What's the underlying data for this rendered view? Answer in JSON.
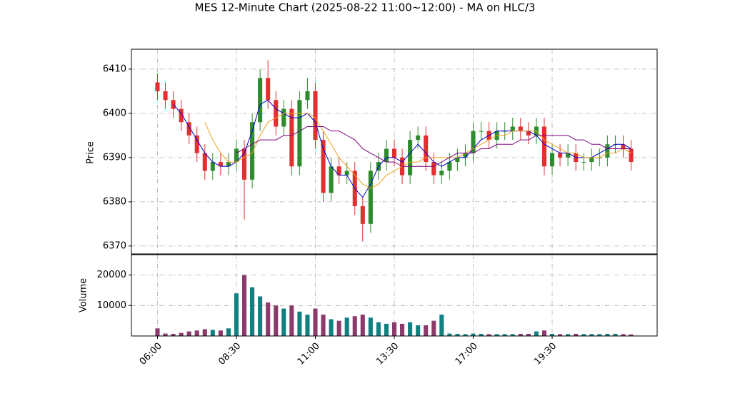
{
  "chart_data": {
    "type": "candlestick",
    "title": "MES 12-Minute Chart (2025-08-22 11:00~12:00) - MA on HLC/3",
    "ylabel": "Price",
    "ylim": [
      6368.2,
      6414.5
    ],
    "yticks": [
      6370,
      6380,
      6390,
      6400,
      6410
    ],
    "xlim": [
      -3.3,
      63.3
    ],
    "xticks": [
      {
        "value": 0,
        "label": "06:00"
      },
      {
        "value": 10,
        "label": "08:30"
      },
      {
        "value": 20,
        "label": "11:00"
      },
      {
        "value": 30,
        "label": "13:30"
      },
      {
        "value": 40,
        "label": "17:00"
      },
      {
        "value": 50,
        "label": "19:30"
      }
    ],
    "grid": true,
    "up_color": "#2e8b2e",
    "down_color": "#e03030",
    "open": [
      6407,
      6405,
      6403,
      6401,
      6398,
      6395,
      6391,
      6387,
      6389,
      6388,
      6389,
      6392,
      6385,
      6398,
      6408,
      6403,
      6397,
      6401,
      6388,
      6403,
      6405,
      6394,
      6382,
      6388,
      6386,
      6387,
      6379,
      6375,
      6387,
      6389,
      6392,
      6390,
      6386,
      6394,
      6395,
      6389,
      6386,
      6387,
      6389,
      6390,
      6391,
      6396,
      6396,
      6394,
      6396,
      6396,
      6397,
      6396,
      6395,
      6397,
      6388,
      6391,
      6390,
      6391,
      6389,
      6389,
      6390,
      6390,
      6393,
      6393,
      6392
    ],
    "high": [
      6409,
      6407,
      6405,
      6403,
      6400,
      6397,
      6393,
      6391,
      6391,
      6391,
      6394,
      6394,
      6400,
      6410,
      6412,
      6405,
      6403,
      6403,
      6405,
      6408,
      6407,
      6396,
      6390,
      6390,
      6389,
      6389,
      6381,
      6389,
      6391,
      6394,
      6394,
      6392,
      6396,
      6397,
      6397,
      6391,
      6389,
      6391,
      6392,
      6393,
      6398,
      6398,
      6398,
      6398,
      6398,
      6399,
      6399,
      6398,
      6399,
      6399,
      6393,
      6393,
      6393,
      6393,
      6391,
      6392,
      6392,
      6395,
      6395,
      6395,
      6394
    ],
    "low": [
      6403,
      6401,
      6399,
      6396,
      6393,
      6389,
      6385,
      6385,
      6386,
      6386,
      6387,
      6376,
      6383,
      6396,
      6401,
      6395,
      6395,
      6386,
      6386,
      6401,
      6392,
      6380,
      6380,
      6384,
      6384,
      6377,
      6371,
      6373,
      6385,
      6387,
      6388,
      6384,
      6384,
      6392,
      6387,
      6384,
      6384,
      6385,
      6387,
      6388,
      6389,
      6394,
      6392,
      6392,
      6394,
      6394,
      6394,
      6393,
      6393,
      6386,
      6386,
      6388,
      6388,
      6387,
      6387,
      6387,
      6388,
      6388,
      6391,
      6390,
      6387
    ],
    "close": [
      6405,
      6403,
      6401,
      6398,
      6395,
      6391,
      6387,
      6389,
      6388,
      6389,
      6392,
      6385,
      6398,
      6408,
      6403,
      6397,
      6401,
      6388,
      6403,
      6405,
      6394,
      6382,
      6388,
      6386,
      6387,
      6379,
      6375,
      6387,
      6389,
      6392,
      6390,
      6386,
      6394,
      6395,
      6389,
      6386,
      6387,
      6389,
      6390,
      6391,
      6396,
      6396,
      6394,
      6396,
      6396,
      6397,
      6396,
      6395,
      6397,
      6388,
      6391,
      6390,
      6391,
      6389,
      6389,
      6390,
      6390,
      6393,
      6393,
      6392,
      6389
    ],
    "series": [
      {
        "color": "#0000cc",
        "values": [
          null,
          null,
          6402,
          6400,
          6397,
          6394,
          6391,
          6389,
          6388,
          6388,
          6389,
          6391,
          6396,
          6402,
          6403,
          6401,
          6400,
          6399,
          6399,
          6400,
          6398,
          6392,
          6388,
          6386,
          6386,
          6383,
          6381,
          6384,
          6388,
          6390,
          6390,
          6389,
          6391,
          6393,
          6391,
          6389,
          6388,
          6389,
          6390,
          6390,
          6392,
          6394,
          6395,
          6396,
          6396,
          6396,
          6396,
          6396,
          6395,
          6393,
          6392,
          6391,
          6391,
          6390,
          6390,
          6390,
          6391,
          6392,
          6393,
          6393,
          6392
        ]
      },
      {
        "color": "#f0a020",
        "values": [
          null,
          null,
          null,
          null,
          null,
          null,
          6398,
          6394,
          6391,
          6389,
          6389,
          6390,
          6391,
          6395,
          6398,
          6399,
          6400,
          6400,
          6400,
          6400,
          6399,
          6396,
          6393,
          6390,
          6388,
          6386,
          6384,
          6383,
          6384,
          6386,
          6387,
          6388,
          6389,
          6389,
          6390,
          6390,
          6390,
          6390,
          6390,
          6391,
          6392,
          6393,
          6394,
          6395,
          6395,
          6396,
          6396,
          6396,
          6396,
          6394,
          6393,
          6392,
          6391,
          6391,
          6390,
          6390,
          6390,
          6391,
          6391,
          6392,
          6391
        ]
      },
      {
        "color": "#800080",
        "values": [
          null,
          null,
          null,
          null,
          null,
          null,
          null,
          null,
          null,
          null,
          6391,
          6392,
          6393,
          6394,
          6394,
          6394,
          6395,
          6395,
          6396,
          6397,
          6397,
          6397,
          6396,
          6396,
          6395,
          6394,
          6392,
          6391,
          6390,
          6389,
          6389,
          6388,
          6388,
          6388,
          6388,
          6388,
          6389,
          6390,
          6391,
          6391,
          6391,
          6392,
          6392,
          6393,
          6393,
          6393,
          6394,
          6394,
          6395,
          6395,
          6395,
          6395,
          6395,
          6394,
          6394,
          6393,
          6393,
          6392,
          6392,
          6392,
          6392
        ]
      }
    ],
    "volume": {
      "ylabel": "Volume",
      "ylim": [
        0,
        26700
      ],
      "yticks": [
        10000,
        20000
      ],
      "up_color": "#108080",
      "down_color": "#8b3a6b",
      "values": [
        2500,
        800,
        700,
        1000,
        1500,
        1800,
        2200,
        2000,
        1800,
        2500,
        14000,
        20000,
        16000,
        13000,
        11000,
        10000,
        9000,
        10000,
        8000,
        7000,
        9000,
        7000,
        5500,
        5000,
        6000,
        6500,
        7000,
        6000,
        4500,
        4000,
        4500,
        4000,
        4500,
        3500,
        3500,
        5000,
        7000,
        800,
        700,
        600,
        800,
        700,
        600,
        600,
        600,
        600,
        700,
        700,
        1500,
        1800,
        700,
        600,
        600,
        700,
        600,
        600,
        600,
        700,
        700,
        600,
        500
      ]
    }
  }
}
